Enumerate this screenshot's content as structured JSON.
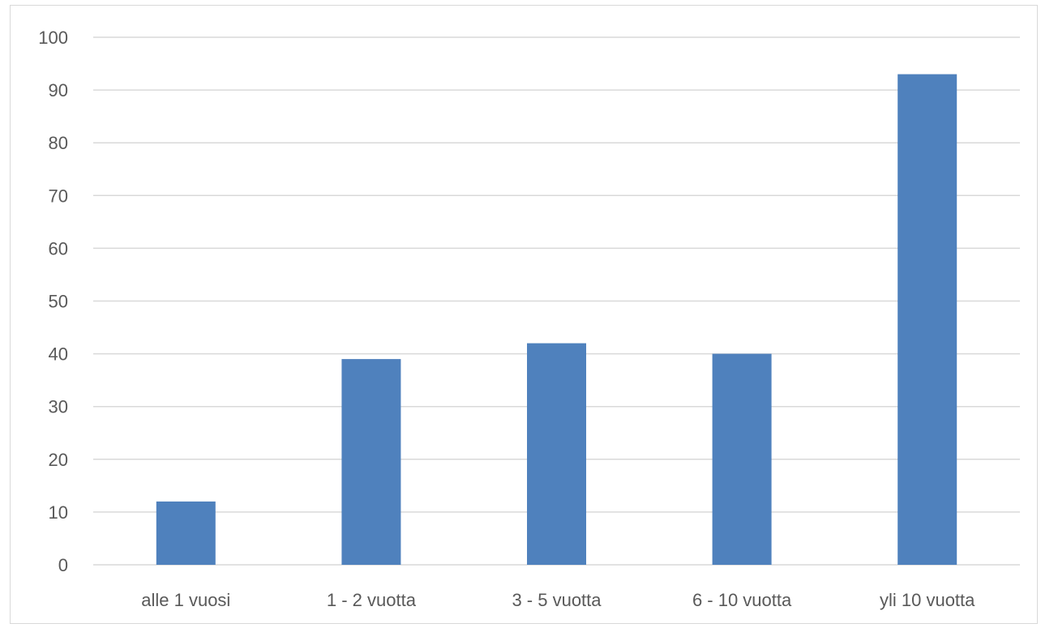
{
  "chart_data": {
    "type": "bar",
    "categories": [
      "alle 1 vuosi",
      "1 - 2 vuotta",
      "3 - 5 vuotta",
      "6 - 10 vuotta",
      "yli 10 vuotta"
    ],
    "values": [
      12,
      39,
      42,
      40,
      93
    ],
    "title": "",
    "xlabel": "",
    "ylabel": "",
    "ylim": [
      0,
      100
    ],
    "yticks": [
      0,
      10,
      20,
      30,
      40,
      50,
      60,
      70,
      80,
      90,
      100
    ],
    "grid": true,
    "legend": "none",
    "bar_color": "#4f81bd",
    "grid_color": "#d9d9d9"
  }
}
